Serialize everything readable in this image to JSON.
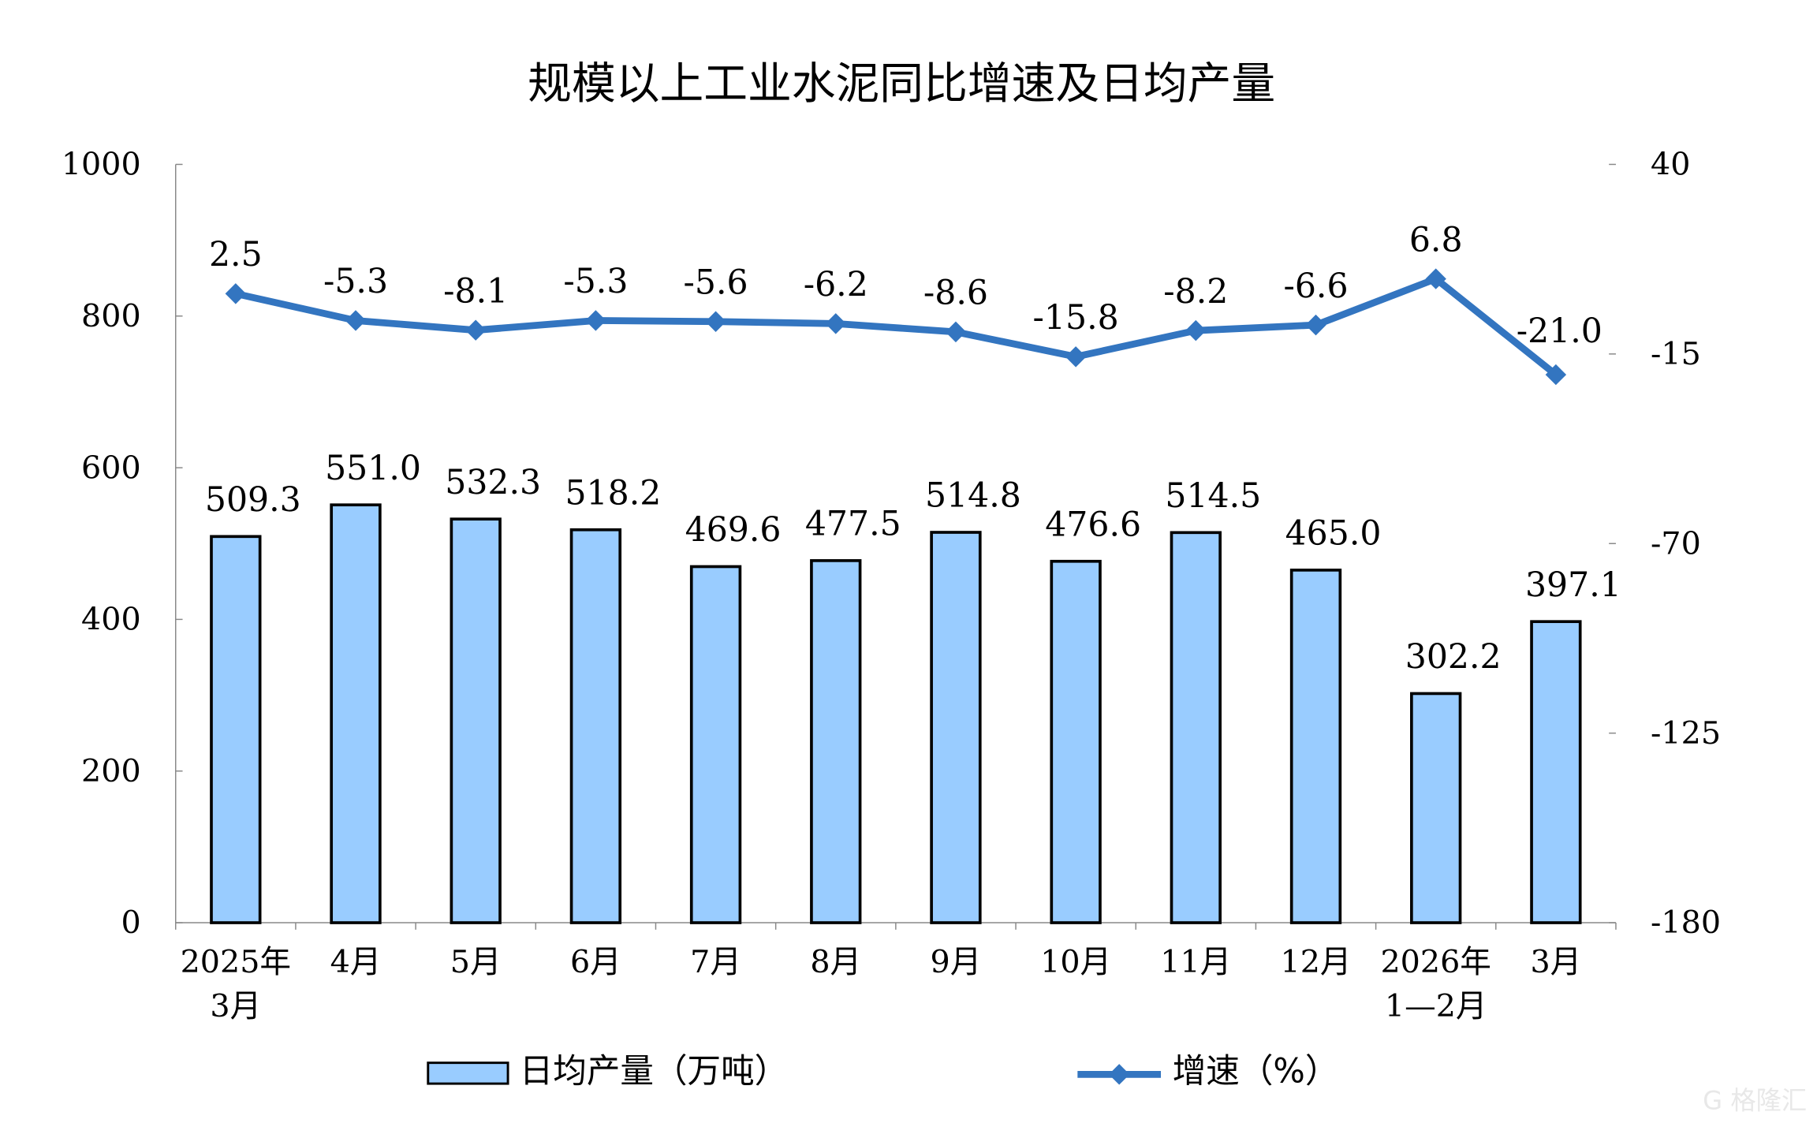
{
  "chart_data": {
    "type": "bar+line",
    "title": "规模以上工业水泥同比增速及日均产量",
    "categories": [
      [
        "2025年",
        "3月"
      ],
      [
        "4月"
      ],
      [
        "5月"
      ],
      [
        "6月"
      ],
      [
        "7月"
      ],
      [
        "8月"
      ],
      [
        "9月"
      ],
      [
        "10月"
      ],
      [
        "11月"
      ],
      [
        "12月"
      ],
      [
        "2026年",
        "1—2月"
      ],
      [
        "3月"
      ]
    ],
    "series": [
      {
        "name": "日均产量（万吨）",
        "type": "bar",
        "axis": "left",
        "color": "#99CCFF",
        "values": [
          509.3,
          551.0,
          532.3,
          518.2,
          469.6,
          477.5,
          514.8,
          476.6,
          514.5,
          465.0,
          302.2,
          397.1
        ],
        "labels": [
          "509.3",
          "551.0",
          "532.3",
          "518.2",
          "469.6",
          "477.5",
          "514.8",
          "476.6",
          "514.5",
          "465.0",
          "302.2",
          "397.1"
        ]
      },
      {
        "name": "增速（%）",
        "type": "line",
        "axis": "right",
        "color": "#3375C0",
        "marker": "diamond",
        "values": [
          2.5,
          -5.3,
          -8.1,
          -5.3,
          -5.6,
          -6.2,
          -8.6,
          -15.8,
          -8.2,
          -6.6,
          6.8,
          -21.0
        ],
        "labels": [
          "2.5",
          "-5.3",
          "-8.1",
          "-5.3",
          "-5.6",
          "-6.2",
          "-8.6",
          "-15.8",
          "-8.2",
          "-6.6",
          "6.8",
          "-21.0"
        ]
      }
    ],
    "y_left": {
      "range": [
        0,
        1000
      ],
      "ticks": [
        "0",
        "200",
        "400",
        "600",
        "800",
        "1000"
      ]
    },
    "y_right": {
      "range": [
        -180,
        40
      ],
      "ticks": [
        "-180",
        "-125",
        "-70",
        "-15",
        "40"
      ]
    },
    "grid": false,
    "legend": "bottom"
  },
  "watermark": "格隆汇"
}
